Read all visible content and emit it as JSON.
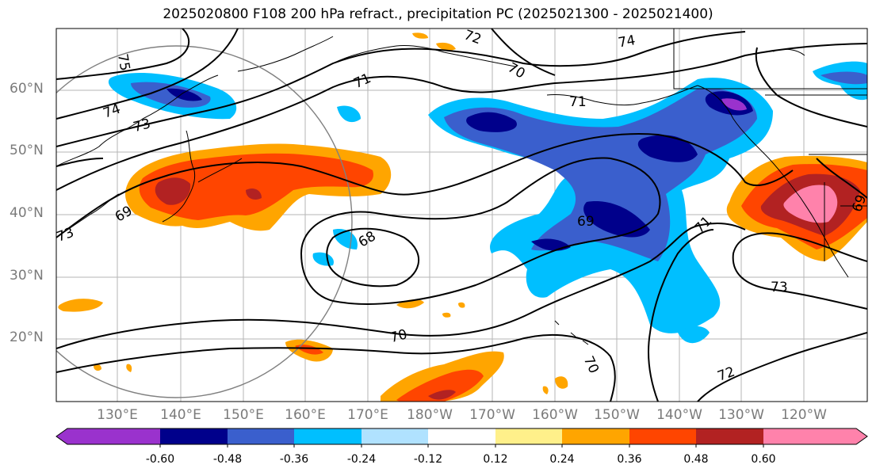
{
  "title": "2025020800 F108 200 hPa refract., precipitation PC (2025021300 - 2025021400)",
  "lat_labels": [
    "60°N",
    "50°N",
    "40°N",
    "30°N",
    "20°N"
  ],
  "lon_labels": [
    "130°E",
    "140°E",
    "150°E",
    "160°E",
    "170°E",
    "180°W",
    "170°W",
    "160°W",
    "150°W",
    "140°W",
    "130°W",
    "120°W"
  ],
  "colorbar": {
    "colors": [
      "#9a32cd",
      "#00008b",
      "#3a5fcd",
      "#00bfff",
      "#b0e2ff",
      "#ffffff",
      "#fff08a",
      "#ffa500",
      "#ff4500",
      "#b22222",
      "#ff82ab"
    ],
    "tick_labels": [
      "-0.60",
      "-0.48",
      "-0.36",
      "-0.24",
      "-0.12",
      "0.12",
      "0.24",
      "0.36",
      "0.48",
      "0.60"
    ]
  },
  "contour_labels": [
    "75",
    "74",
    "73",
    "72",
    "71",
    "70",
    "69",
    "68",
    "74",
    "73",
    "71",
    "71",
    "69",
    "73",
    "72",
    "70",
    "70",
    "69"
  ]
}
